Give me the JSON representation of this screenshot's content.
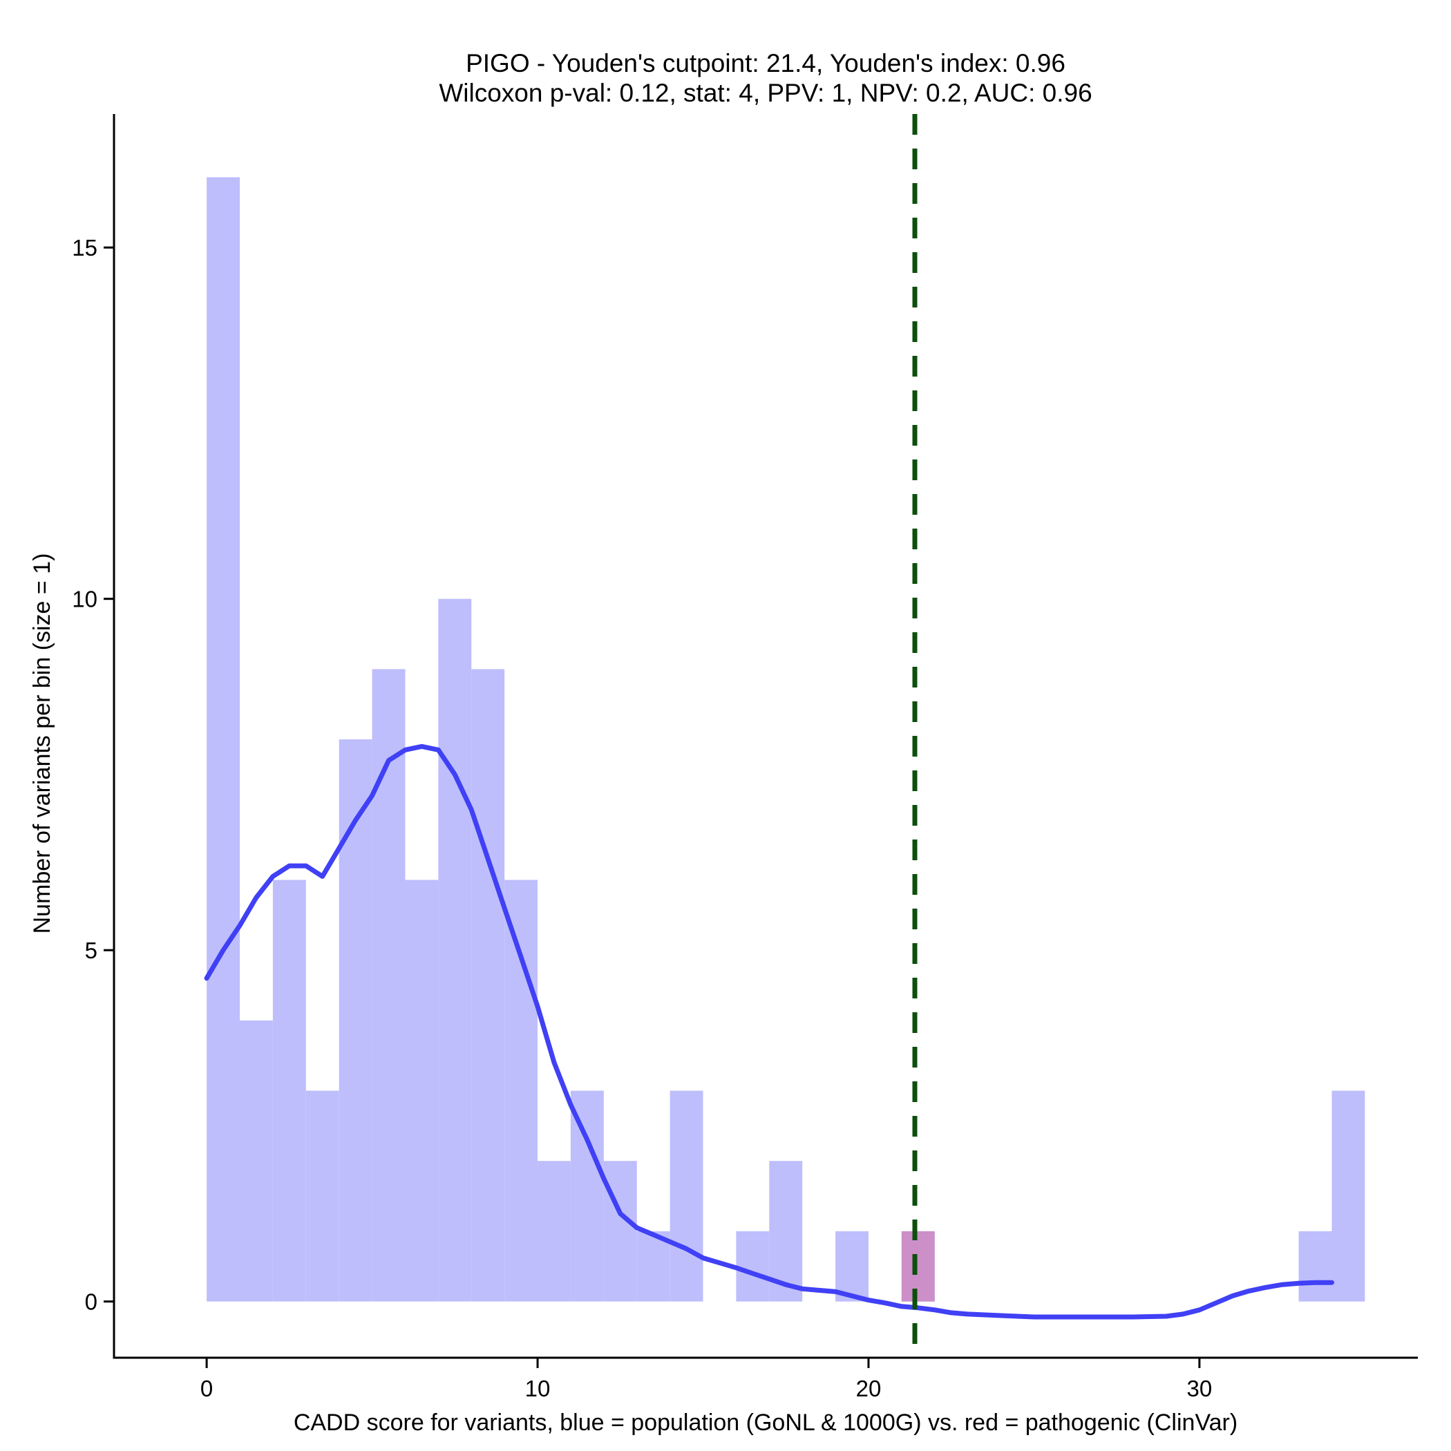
{
  "chart_data": {
    "type": "bar",
    "title": "PIGO - Youden's cutpoint: 21.4, Youden's index: 0.96",
    "subtitle": "Wilcoxon p-val: 0.12, stat: 4, PPV: 1, NPV: 0.2, AUC: 0.96",
    "xlabel": "CADD score for variants, blue = population (GoNL & 1000G) vs. red = pathogenic (ClinVar)",
    "ylabel": "Number of variants per bin (size = 1)",
    "xlim": [
      -2.8,
      36.6
    ],
    "ylim": [
      -0.8,
      16.9
    ],
    "x_ticks": [
      0,
      10,
      20,
      30
    ],
    "y_ticks": [
      0,
      5,
      10,
      15
    ],
    "bin_width": 1,
    "series": [
      {
        "color": "#bebefc",
        "bins": [
          {
            "start": 0,
            "count": 16
          },
          {
            "start": 1,
            "count": 4
          },
          {
            "start": 2,
            "count": 6
          },
          {
            "start": 3,
            "count": 3
          },
          {
            "start": 4,
            "count": 8
          },
          {
            "start": 5,
            "count": 9
          },
          {
            "start": 6,
            "count": 6
          },
          {
            "start": 7,
            "count": 10
          },
          {
            "start": 8,
            "count": 9
          },
          {
            "start": 9,
            "count": 6
          },
          {
            "start": 10,
            "count": 2
          },
          {
            "start": 11,
            "count": 3
          },
          {
            "start": 12,
            "count": 2
          },
          {
            "start": 13,
            "count": 1
          },
          {
            "start": 14,
            "count": 3
          },
          {
            "start": 16,
            "count": 1
          },
          {
            "start": 17,
            "count": 2
          },
          {
            "start": 19,
            "count": 1
          },
          {
            "start": 21,
            "count": 1
          },
          {
            "start": 33,
            "count": 1
          },
          {
            "start": 34,
            "count": 3
          }
        ]
      },
      {
        "color": "#cc8fc8",
        "bins": [
          {
            "start": 21,
            "count": 1
          }
        ]
      }
    ],
    "density": {
      "color": "#4040f5",
      "points": [
        [
          0,
          4.6
        ],
        [
          0.5,
          5.0
        ],
        [
          1,
          5.35
        ],
        [
          1.5,
          5.75
        ],
        [
          2,
          6.05
        ],
        [
          2.5,
          6.2
        ],
        [
          3,
          6.2
        ],
        [
          3.5,
          6.05
        ],
        [
          4,
          6.45
        ],
        [
          4.5,
          6.85
        ],
        [
          5,
          7.2
        ],
        [
          5.5,
          7.7
        ],
        [
          6,
          7.85
        ],
        [
          6.5,
          7.9
        ],
        [
          7,
          7.85
        ],
        [
          7.5,
          7.5
        ],
        [
          8,
          7.0
        ],
        [
          8.5,
          6.3
        ],
        [
          9,
          5.6
        ],
        [
          9.5,
          4.9
        ],
        [
          10,
          4.2
        ],
        [
          10.5,
          3.4
        ],
        [
          11,
          2.8
        ],
        [
          11.5,
          2.3
        ],
        [
          12,
          1.75
        ],
        [
          12.5,
          1.25
        ],
        [
          13,
          1.05
        ],
        [
          13.5,
          0.95
        ],
        [
          14,
          0.85
        ],
        [
          14.5,
          0.75
        ],
        [
          15,
          0.62
        ],
        [
          15.5,
          0.55
        ],
        [
          16,
          0.48
        ],
        [
          16.5,
          0.4
        ],
        [
          17,
          0.32
        ],
        [
          17.5,
          0.24
        ],
        [
          18,
          0.18
        ],
        [
          18.5,
          0.16
        ],
        [
          19,
          0.14
        ],
        [
          19.5,
          0.08
        ],
        [
          20,
          0.02
        ],
        [
          20.5,
          -0.02
        ],
        [
          21,
          -0.07
        ],
        [
          21.5,
          -0.09
        ],
        [
          22,
          -0.12
        ],
        [
          22.5,
          -0.16
        ],
        [
          23,
          -0.18
        ],
        [
          24,
          -0.2
        ],
        [
          25,
          -0.22
        ],
        [
          26,
          -0.22
        ],
        [
          27,
          -0.22
        ],
        [
          28,
          -0.22
        ],
        [
          29,
          -0.21
        ],
        [
          29.5,
          -0.18
        ],
        [
          30,
          -0.12
        ],
        [
          30.5,
          -0.02
        ],
        [
          31,
          0.08
        ],
        [
          31.5,
          0.15
        ],
        [
          32,
          0.2
        ],
        [
          32.5,
          0.24
        ],
        [
          33,
          0.26
        ],
        [
          33.5,
          0.27
        ],
        [
          34,
          0.27
        ]
      ]
    },
    "cutpoint": {
      "x": 21.4,
      "color": "#0d4f0d",
      "style": "dashed"
    },
    "grid": false,
    "legend": "none"
  }
}
